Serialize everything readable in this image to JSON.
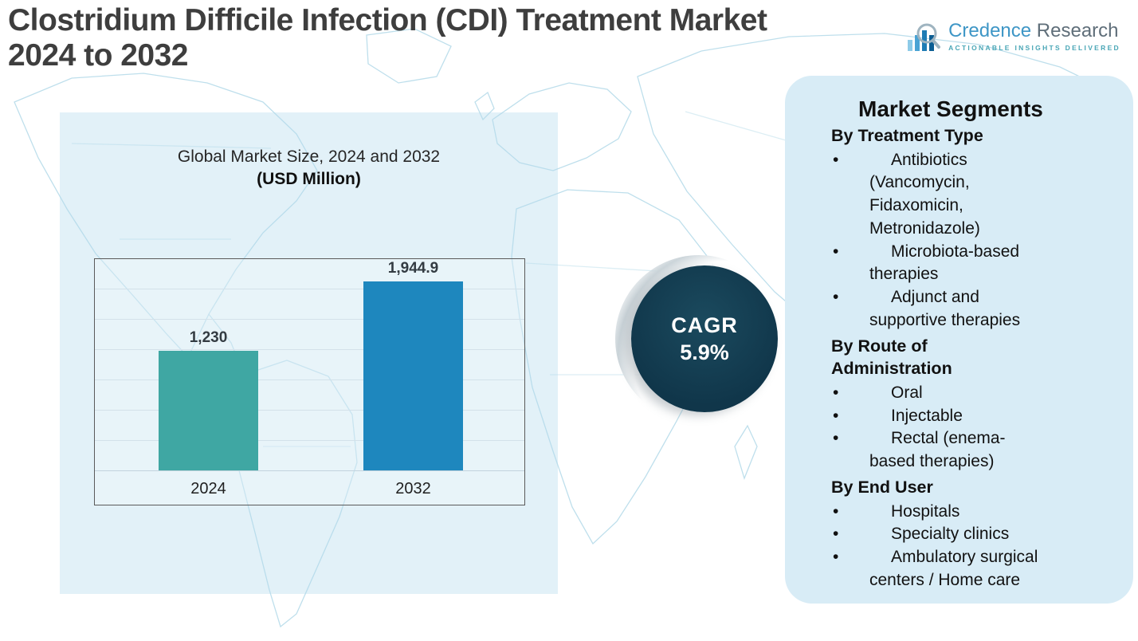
{
  "title": {
    "line1": "Clostridium Difficile Infection (CDI) Treatment Market",
    "line2": "2024 to 2032"
  },
  "logo": {
    "name_part1": "Credence",
    "name_part2": "Research",
    "tagline": "Actionable Insights Delivered"
  },
  "chart_data": {
    "type": "bar",
    "title": "Global Market Size, 2024 and 2032",
    "subtitle": "(USD Million)",
    "categories": [
      "2024",
      "2032"
    ],
    "values": [
      1230,
      1944.9
    ],
    "value_labels": [
      "1,230",
      "1,944.9"
    ],
    "bar_colors": [
      "#3fa7a3",
      "#1e87be"
    ],
    "xlabel": "",
    "ylabel": "",
    "ylim": [
      0,
      2200
    ],
    "grid": true,
    "legend": "none"
  },
  "cagr": {
    "label": "CAGR",
    "value": "5.9%"
  },
  "segments": {
    "heading": "Market Segments",
    "groups": [
      {
        "title": "By Treatment Type",
        "items": [
          "Antibiotics\n(Vancomycin,\nFidaxomicin,\nMetronidazole)",
          "Microbiota-based\ntherapies",
          "Adjunct and\nsupportive therapies"
        ]
      },
      {
        "title": "By Route of\nAdministration",
        "items": [
          "Oral",
          "Injectable",
          "Rectal (enema-\nbased therapies)"
        ]
      },
      {
        "title": "By End User",
        "items": [
          "Hospitals",
          "Specialty clinics",
          "Ambulatory surgical\ncenters / Home care"
        ]
      }
    ]
  },
  "colors": {
    "accent_teal": "#3fa7a3",
    "accent_blue": "#1e87be",
    "cagr_circle": "#10364a",
    "panel_blue": "#d8ecf6",
    "map_line": "#b8dcea",
    "title_gray": "#3e3e3e"
  }
}
